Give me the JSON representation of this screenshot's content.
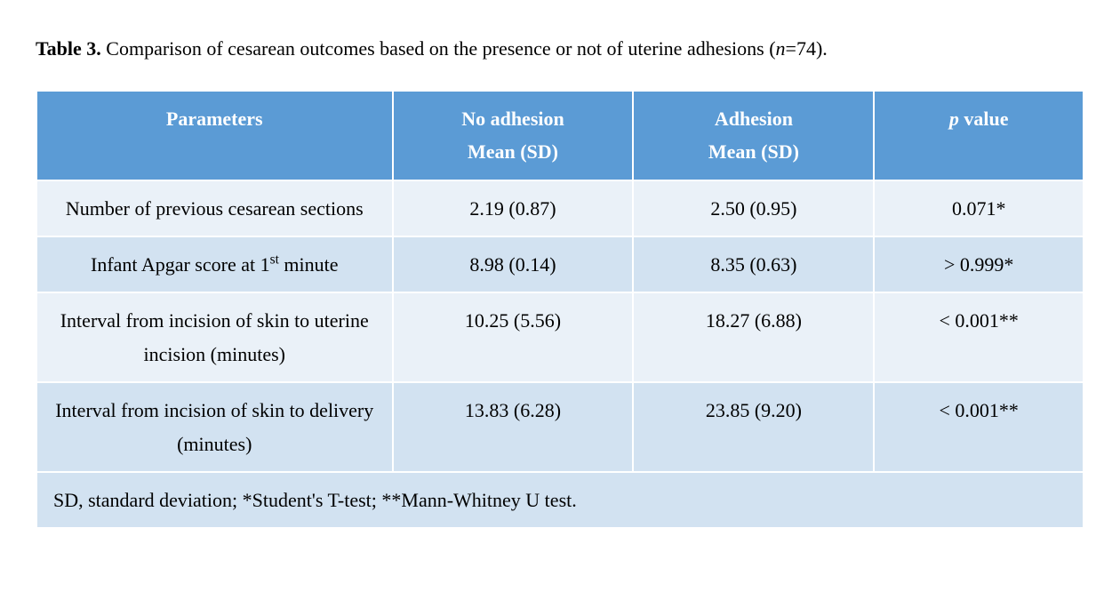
{
  "caption": {
    "label": "Table 3.",
    "text_before_n": " Comparison of cesarean outcomes based on the presence or not of uterine adhesions (",
    "n_letter": "n",
    "text_after_n": "=74)."
  },
  "table": {
    "columns": [
      {
        "line1": "Parameters",
        "line2": ""
      },
      {
        "line1": "No adhesion",
        "line2": "Mean (SD)"
      },
      {
        "line1": "Adhesion",
        "line2": "Mean (SD)"
      },
      {
        "line1_italic": "p",
        "line1_rest": " value",
        "line2": ""
      }
    ],
    "rows": [
      {
        "param_html": "Number of previous cesarean sections",
        "no_adhesion": "2.19 (0.87)",
        "adhesion": "2.50 (0.95)",
        "p": "0.071*"
      },
      {
        "param_html": "Infant Apgar score at 1<sup>st</sup> minute",
        "no_adhesion": "8.98 (0.14)",
        "adhesion": "8.35 (0.63)",
        "p": "> 0.999*"
      },
      {
        "param_html": "Interval from incision of skin to uterine incision (minutes)",
        "no_adhesion": "10.25 (5.56)",
        "adhesion": "18.27 (6.88)",
        "p": "< 0.001**"
      },
      {
        "param_html": "Interval from incision of skin to delivery (minutes)",
        "no_adhesion": "13.83 (6.28)",
        "adhesion": "23.85 (9.20)",
        "p": "< 0.001**"
      }
    ],
    "footnote": "SD, standard deviation; *Student's T-test; **Mann-Whitney U test."
  },
  "style": {
    "header_bg": "#5b9bd5",
    "row_even_bg": "#eaf1f8",
    "row_odd_bg": "#d2e2f1",
    "font_family": "Times New Roman",
    "font_size_pt": 16
  }
}
